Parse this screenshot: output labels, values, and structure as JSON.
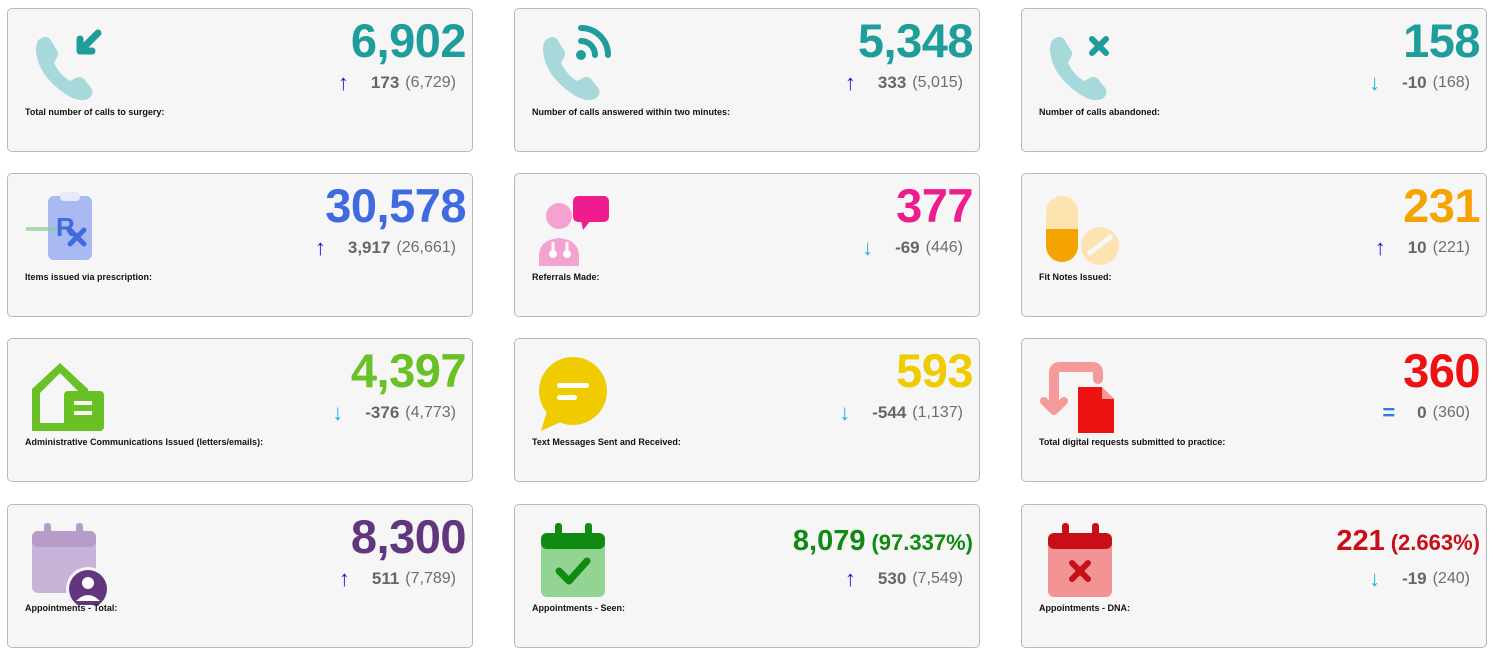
{
  "cards": [
    {
      "label": "Total number of calls to surgery:",
      "value": "6,902",
      "trend": "up",
      "arrow": "↑",
      "change": "173",
      "previous": "(6,729)",
      "color": "#1f9d9b",
      "icon": "phone-incoming-icon"
    },
    {
      "label": "Number of calls answered within two minutes:",
      "value": "5,348",
      "trend": "up",
      "arrow": "↑",
      "change": "333",
      "previous": "(5,015)",
      "color": "#1f9d9b",
      "icon": "phone-signal-icon"
    },
    {
      "label": "Number of calls abandoned:",
      "value": "158",
      "trend": "down",
      "arrow": "↓",
      "change": "-10",
      "previous": "(168)",
      "color": "#1f9d9b",
      "icon": "phone-missed-icon"
    },
    {
      "label": "Items issued via prescription:",
      "value": "30,578",
      "trend": "up",
      "arrow": "↑",
      "change": "3,917",
      "previous": "(26,661)",
      "color": "#3f6ae0",
      "icon": "prescription-clipboard-icon"
    },
    {
      "label": "Referrals Made:",
      "value": "377",
      "trend": "down",
      "arrow": "↓",
      "change": "-69",
      "previous": "(446)",
      "color": "#ee1c8c",
      "icon": "doctor-chat-icon"
    },
    {
      "label": "Fit Notes Issued:",
      "value": "231",
      "trend": "up",
      "arrow": "↑",
      "change": "10",
      "previous": "(221)",
      "color": "#f5a300",
      "icon": "pills-icon"
    },
    {
      "label": "Administrative Communications Issued (letters/emails):",
      "value": "4,397",
      "trend": "down",
      "arrow": "↓",
      "change": "-376",
      "previous": "(4,773)",
      "color": "#69c125",
      "icon": "mail-house-icon"
    },
    {
      "label": "Text Messages Sent and Received:",
      "value": "593",
      "trend": "down",
      "arrow": "↓",
      "change": "-544",
      "previous": "(1,137)",
      "color": "#f0cb00",
      "icon": "chat-bubble-icon"
    },
    {
      "label": "Total digital requests submitted to practice:",
      "value": "360",
      "trend": "eq",
      "arrow": "=",
      "change": "0",
      "previous": "(360)",
      "color": "#ee1111",
      "icon": "document-transfer-icon"
    },
    {
      "label": "Appointments - Total:",
      "value": "8,300",
      "trend": "up",
      "arrow": "↑",
      "change": "511",
      "previous": "(7,789)",
      "color": "#62357f",
      "icon": "calendar-user-icon"
    },
    {
      "label": "Appointments - Seen:",
      "value": "8,079",
      "percent": "(97.337%)",
      "trend": "up",
      "arrow": "↑",
      "change": "530",
      "previous": "(7,549)",
      "color": "#108a10",
      "icon": "calendar-check-icon"
    },
    {
      "label": "Appointments - DNA:",
      "value": "221",
      "percent": "(2.663%)",
      "trend": "down",
      "arrow": "↓",
      "change": "-19",
      "previous": "(240)",
      "color": "#c80e16",
      "icon": "calendar-cross-icon"
    }
  ]
}
